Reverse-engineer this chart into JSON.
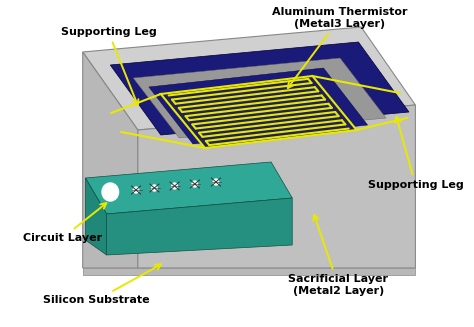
{
  "bg_color": "#ffffff",
  "labels": {
    "supporting_leg_left": "Supporting Leg",
    "aluminum_thermistor": "Aluminum Thermistor\n(Metal3 Layer)",
    "supporting_leg_right": "Supporting Leg",
    "circuit_layer": "Circuit Layer",
    "silicon_substrate": "Silicon Substrate",
    "sacrificial_layer": "Sacrificial Layer\n(Metal2 Layer)"
  },
  "colors": {
    "body_top": "#d0d0d0",
    "body_left": "#b8b8b8",
    "body_right": "#a0a0a0",
    "body_front": "#c0c0c0",
    "recess_top": "#c8c8c8",
    "recess_left": "#b0b0b0",
    "recess_right": "#a8a8a8",
    "teal_top": "#30a898",
    "teal_side": "#208878",
    "teal_front": "#259080",
    "dark_blue": "#1a1a78",
    "mid_blue": "#2a2a8a",
    "inner_blue": "#1e1e6e",
    "serpentine": "#e8e800",
    "arrow_color": "#e8e800",
    "text_color": "#000000",
    "edge_dark": "#505050",
    "edge_light": "#888888"
  },
  "fontsize": 8,
  "arrow_lw": 1.5
}
